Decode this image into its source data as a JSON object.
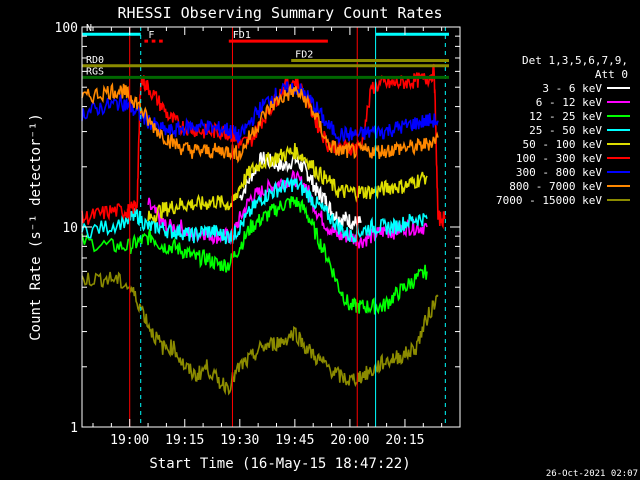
{
  "chart_data": {
    "type": "line",
    "title": "RHESSI Observing Summary Count Rates",
    "xlabel": "Start Time (16-May-15 18:47:22)",
    "ylabel": "Count Rate (s⁻¹ detector⁻¹)",
    "yscale": "log",
    "ylim": [
      1,
      100
    ],
    "xlim_minutes": [
      -13,
      90
    ],
    "x_ticks": [
      {
        "label": "19:00",
        "min": 0
      },
      {
        "label": "19:15",
        "min": 15
      },
      {
        "label": "19:30",
        "min": 30
      },
      {
        "label": "19:45",
        "min": 45
      },
      {
        "label": "20:00",
        "min": 60
      },
      {
        "label": "20:15",
        "min": 75
      }
    ],
    "y_ticks": [
      {
        "label": "1",
        "value": 1
      },
      {
        "label": "10",
        "value": 10
      },
      {
        "label": "100",
        "value": 100
      }
    ],
    "legend_header": [
      "Det 1,3,5,6,7,9,",
      "Att 0"
    ],
    "legend_position": "right",
    "timestamp": "26-Oct-2021 02:07",
    "series": [
      {
        "name": "3 - 6 keV",
        "color": "#ffffff",
        "points": [
          [
            30,
            14
          ],
          [
            33,
            18
          ],
          [
            36,
            22
          ],
          [
            39,
            21
          ],
          [
            42,
            20
          ],
          [
            45,
            22
          ],
          [
            47,
            20
          ],
          [
            49,
            18
          ],
          [
            51,
            15
          ],
          [
            53,
            14
          ],
          [
            55,
            12
          ],
          [
            57,
            11
          ],
          [
            59,
            11
          ],
          [
            61,
            10.5
          ],
          [
            63,
            10.5
          ]
        ]
      },
      {
        "name": "6 - 12 keV",
        "color": "#ff00ff",
        "points": [
          [
            5,
            13
          ],
          [
            8,
            11
          ],
          [
            10,
            10
          ],
          [
            14,
            10
          ],
          [
            17,
            9
          ],
          [
            20,
            9.5
          ],
          [
            23,
            9
          ],
          [
            26,
            9
          ],
          [
            28,
            9
          ],
          [
            30,
            11
          ],
          [
            33,
            14
          ],
          [
            36,
            15
          ],
          [
            39,
            16
          ],
          [
            42,
            17
          ],
          [
            45,
            17.5
          ],
          [
            48,
            16
          ],
          [
            51,
            12
          ],
          [
            54,
            10
          ],
          [
            57,
            9
          ],
          [
            60,
            9
          ],
          [
            63,
            8.5
          ],
          [
            66,
            9
          ],
          [
            69,
            9.5
          ],
          [
            72,
            9.5
          ],
          [
            75,
            10
          ],
          [
            78,
            10
          ],
          [
            81,
            10
          ]
        ]
      },
      {
        "name": "12 - 25 keV",
        "color": "#00ff00",
        "points": [
          [
            -13,
            8.5
          ],
          [
            -5,
            8
          ],
          [
            0,
            8
          ],
          [
            3,
            8.5
          ],
          [
            6,
            9
          ],
          [
            9,
            8
          ],
          [
            12,
            8
          ],
          [
            15,
            7.5
          ],
          [
            18,
            7
          ],
          [
            21,
            7
          ],
          [
            24,
            6.5
          ],
          [
            27,
            6.5
          ],
          [
            30,
            8
          ],
          [
            33,
            10
          ],
          [
            36,
            11
          ],
          [
            39,
            12
          ],
          [
            42,
            13
          ],
          [
            45,
            13.5
          ],
          [
            48,
            12
          ],
          [
            51,
            9
          ],
          [
            54,
            7
          ],
          [
            57,
            5
          ],
          [
            60,
            4
          ],
          [
            63,
            4
          ],
          [
            66,
            4
          ],
          [
            69,
            4
          ],
          [
            72,
            4.5
          ],
          [
            75,
            5
          ],
          [
            78,
            5.5
          ],
          [
            81,
            6
          ]
        ]
      },
      {
        "name": "25 - 50 keV",
        "color": "#00ffff",
        "points": [
          [
            -13,
            9.5
          ],
          [
            -6,
            10
          ],
          [
            0,
            11
          ],
          [
            2,
            11.5
          ],
          [
            5,
            10
          ],
          [
            8,
            10
          ],
          [
            11,
            9.5
          ],
          [
            14,
            9.5
          ],
          [
            17,
            9
          ],
          [
            20,
            9.5
          ],
          [
            23,
            9.5
          ],
          [
            26,
            9
          ],
          [
            28,
            9
          ],
          [
            30,
            10
          ],
          [
            33,
            12
          ],
          [
            36,
            14
          ],
          [
            39,
            15
          ],
          [
            42,
            16
          ],
          [
            45,
            16.5
          ],
          [
            48,
            15
          ],
          [
            51,
            13
          ],
          [
            54,
            11.5
          ],
          [
            57,
            10
          ],
          [
            60,
            9
          ],
          [
            63,
            9.5
          ],
          [
            66,
            10
          ],
          [
            69,
            10
          ],
          [
            72,
            10
          ],
          [
            75,
            10.5
          ],
          [
            78,
            11
          ],
          [
            81,
            11
          ]
        ]
      },
      {
        "name": "50 - 100 keV",
        "color": "#dddd00",
        "points": [
          [
            5,
            11
          ],
          [
            8,
            12
          ],
          [
            11,
            12.5
          ],
          [
            14,
            13
          ],
          [
            17,
            13
          ],
          [
            20,
            13
          ],
          [
            23,
            13.5
          ],
          [
            26,
            13
          ],
          [
            28,
            13
          ],
          [
            30,
            16
          ],
          [
            33,
            19
          ],
          [
            36,
            21
          ],
          [
            39,
            22
          ],
          [
            42,
            23
          ],
          [
            45,
            24
          ],
          [
            48,
            22
          ],
          [
            51,
            19
          ],
          [
            54,
            17
          ],
          [
            57,
            15
          ],
          [
            60,
            15
          ],
          [
            63,
            15
          ],
          [
            66,
            15
          ],
          [
            69,
            15.5
          ],
          [
            72,
            16
          ],
          [
            75,
            16
          ],
          [
            78,
            17
          ],
          [
            81,
            18
          ]
        ]
      },
      {
        "name": "100 - 300 keV",
        "color": "#ff0000",
        "points": [
          [
            -13,
            11
          ],
          [
            -9,
            11.5
          ],
          [
            -5,
            12
          ],
          [
            -1,
            12
          ],
          [
            0,
            12
          ],
          [
            2,
            13
          ],
          [
            3,
            55
          ],
          [
            5,
            50
          ],
          [
            8,
            42
          ],
          [
            11,
            35
          ],
          [
            14,
            32
          ],
          [
            17,
            31
          ],
          [
            20,
            30
          ],
          [
            23,
            30
          ],
          [
            26,
            30
          ],
          [
            28,
            29
          ],
          [
            30,
            26
          ],
          [
            33,
            27
          ],
          [
            36,
            34
          ],
          [
            39,
            41
          ],
          [
            42,
            50
          ],
          [
            45,
            54
          ],
          [
            48,
            45
          ],
          [
            51,
            33
          ],
          [
            54,
            26
          ],
          [
            57,
            25
          ],
          [
            60,
            25
          ],
          [
            63,
            25
          ],
          [
            66,
            50
          ],
          [
            69,
            52
          ],
          [
            72,
            52
          ],
          [
            75,
            53
          ],
          [
            78,
            54
          ],
          [
            81,
            55
          ],
          [
            83,
            60
          ],
          [
            84,
            11
          ],
          [
            86,
            11
          ]
        ]
      },
      {
        "name": "300 - 800 keV",
        "color": "#0000ff",
        "points": [
          [
            -13,
            37
          ],
          [
            -9,
            39
          ],
          [
            -5,
            41
          ],
          [
            -2,
            42
          ],
          [
            0,
            40
          ],
          [
            2,
            37
          ],
          [
            5,
            34
          ],
          [
            8,
            31
          ],
          [
            11,
            30
          ],
          [
            14,
            31
          ],
          [
            17,
            32
          ],
          [
            20,
            32
          ],
          [
            23,
            31
          ],
          [
            26,
            31
          ],
          [
            28,
            30
          ],
          [
            30,
            28
          ],
          [
            33,
            34
          ],
          [
            36,
            40
          ],
          [
            39,
            45
          ],
          [
            42,
            48
          ],
          [
            45,
            50
          ],
          [
            48,
            46
          ],
          [
            51,
            39
          ],
          [
            54,
            32
          ],
          [
            57,
            29
          ],
          [
            60,
            29
          ],
          [
            63,
            29
          ],
          [
            66,
            30
          ],
          [
            69,
            30
          ],
          [
            72,
            31
          ],
          [
            75,
            32
          ],
          [
            78,
            33
          ],
          [
            81,
            34
          ],
          [
            84,
            34
          ]
        ]
      },
      {
        "name": "800 - 7000 keV",
        "color": "#ff8800",
        "points": [
          [
            -13,
            44
          ],
          [
            -9,
            46
          ],
          [
            -5,
            48
          ],
          [
            -2,
            48
          ],
          [
            0,
            45
          ],
          [
            2,
            42
          ],
          [
            5,
            34
          ],
          [
            8,
            30
          ],
          [
            11,
            27
          ],
          [
            14,
            25
          ],
          [
            17,
            24
          ],
          [
            20,
            24
          ],
          [
            23,
            24
          ],
          [
            26,
            24
          ],
          [
            28,
            24
          ],
          [
            30,
            23
          ],
          [
            33,
            29
          ],
          [
            36,
            35
          ],
          [
            39,
            41
          ],
          [
            42,
            45
          ],
          [
            45,
            48
          ],
          [
            48,
            43
          ],
          [
            51,
            35
          ],
          [
            54,
            26
          ],
          [
            57,
            24
          ],
          [
            60,
            24
          ],
          [
            63,
            24
          ],
          [
            66,
            24
          ],
          [
            69,
            24
          ],
          [
            72,
            24.5
          ],
          [
            75,
            25
          ],
          [
            78,
            25
          ],
          [
            81,
            26
          ],
          [
            84,
            28
          ]
        ]
      },
      {
        "name": "7000 - 15000 keV",
        "color": "#8b8b00",
        "points": [
          [
            -13,
            5.5
          ],
          [
            -8,
            5.5
          ],
          [
            -4,
            5.5
          ],
          [
            0,
            5
          ],
          [
            3,
            4
          ],
          [
            6,
            3
          ],
          [
            9,
            2.5
          ],
          [
            12,
            2.5
          ],
          [
            15,
            2
          ],
          [
            18,
            1.8
          ],
          [
            21,
            2
          ],
          [
            24,
            1.7
          ],
          [
            27,
            1.6
          ],
          [
            30,
            2
          ],
          [
            33,
            2.2
          ],
          [
            36,
            2.5
          ],
          [
            39,
            2.6
          ],
          [
            42,
            2.7
          ],
          [
            45,
            3
          ],
          [
            48,
            2.5
          ],
          [
            51,
            2.2
          ],
          [
            54,
            2
          ],
          [
            57,
            1.8
          ],
          [
            60,
            1.7
          ],
          [
            63,
            1.8
          ],
          [
            66,
            1.9
          ],
          [
            69,
            2.1
          ],
          [
            72,
            2.2
          ],
          [
            75,
            2.3
          ],
          [
            78,
            2.5
          ],
          [
            81,
            3.5
          ],
          [
            84,
            4.5
          ]
        ]
      }
    ],
    "state_bars": [
      {
        "label": "N",
        "color": "#00ffff",
        "segments": [
          [
            -13,
            3
          ],
          [
            67,
            87
          ]
        ],
        "level": 92
      },
      {
        "label": "F",
        "color": "#ff0000",
        "segments": [
          [
            4,
            5
          ],
          [
            6,
            7
          ],
          [
            8,
            9
          ]
        ],
        "level": 85
      },
      {
        "label": "FD1",
        "color": "#ff0000",
        "segments": [
          [
            27,
            54
          ]
        ],
        "level": 85
      },
      {
        "label": "FD2",
        "color": "#8b8b00",
        "segments": [
          [
            44,
            87
          ]
        ],
        "level": 68
      },
      {
        "label": "RD0",
        "color": "#8b8b00",
        "segments": [
          [
            -13,
            87
          ]
        ],
        "level": 64
      },
      {
        "label": "RGS",
        "color": "#006600",
        "segments": [
          [
            -13,
            87
          ]
        ],
        "level": 56
      }
    ],
    "vertical_markers": [
      {
        "color": "#00ffff",
        "min": 3,
        "style": "dashed"
      },
      {
        "color": "#00ffff",
        "min": 67,
        "style": "solid"
      },
      {
        "color": "#00ffff",
        "min": 86,
        "style": "dashed"
      },
      {
        "color": "#ff0000",
        "min": 0,
        "style": "solid"
      },
      {
        "color": "#ff0000",
        "min": 28,
        "style": "solid"
      },
      {
        "color": "#ff0000",
        "min": 62,
        "style": "solid"
      }
    ]
  }
}
